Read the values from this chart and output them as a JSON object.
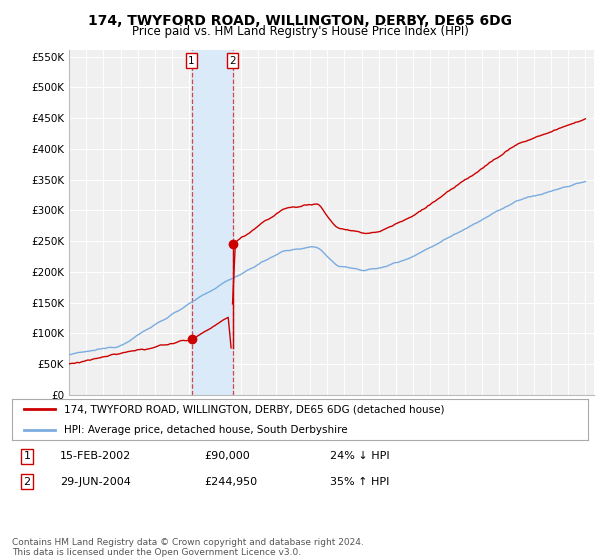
{
  "title": "174, TWYFORD ROAD, WILLINGTON, DERBY, DE65 6DG",
  "subtitle": "Price paid vs. HM Land Registry's House Price Index (HPI)",
  "title_fontsize": 10,
  "subtitle_fontsize": 8.5,
  "ylim": [
    0,
    560000
  ],
  "yticks": [
    0,
    50000,
    100000,
    150000,
    200000,
    250000,
    300000,
    350000,
    400000,
    450000,
    500000,
    550000
  ],
  "ytick_labels": [
    "£0",
    "£50K",
    "£100K",
    "£150K",
    "£200K",
    "£250K",
    "£300K",
    "£350K",
    "£400K",
    "£450K",
    "£500K",
    "£550K"
  ],
  "bg_color": "#ffffff",
  "plot_bg_color": "#f0f0f0",
  "grid_color": "#ffffff",
  "sale1_date": 2002.12,
  "sale1_price": 90000,
  "sale1_label": "1",
  "sale2_date": 2004.5,
  "sale2_price": 244950,
  "sale2_label": "2",
  "legend_line1": "174, TWYFORD ROAD, WILLINGTON, DERBY, DE65 6DG (detached house)",
  "legend_line2": "HPI: Average price, detached house, South Derbyshire",
  "table_row1": [
    "1",
    "15-FEB-2002",
    "£90,000",
    "24% ↓ HPI"
  ],
  "table_row2": [
    "2",
    "29-JUN-2004",
    "£244,950",
    "35% ↑ HPI"
  ],
  "footer": "Contains HM Land Registry data © Crown copyright and database right 2024.\nThis data is licensed under the Open Government Licence v3.0.",
  "red_color": "#cc0000",
  "blue_color": "#7aace0",
  "shade_color": "#daeaf8",
  "xlim_start": 1995,
  "xlim_end": 2025.5
}
